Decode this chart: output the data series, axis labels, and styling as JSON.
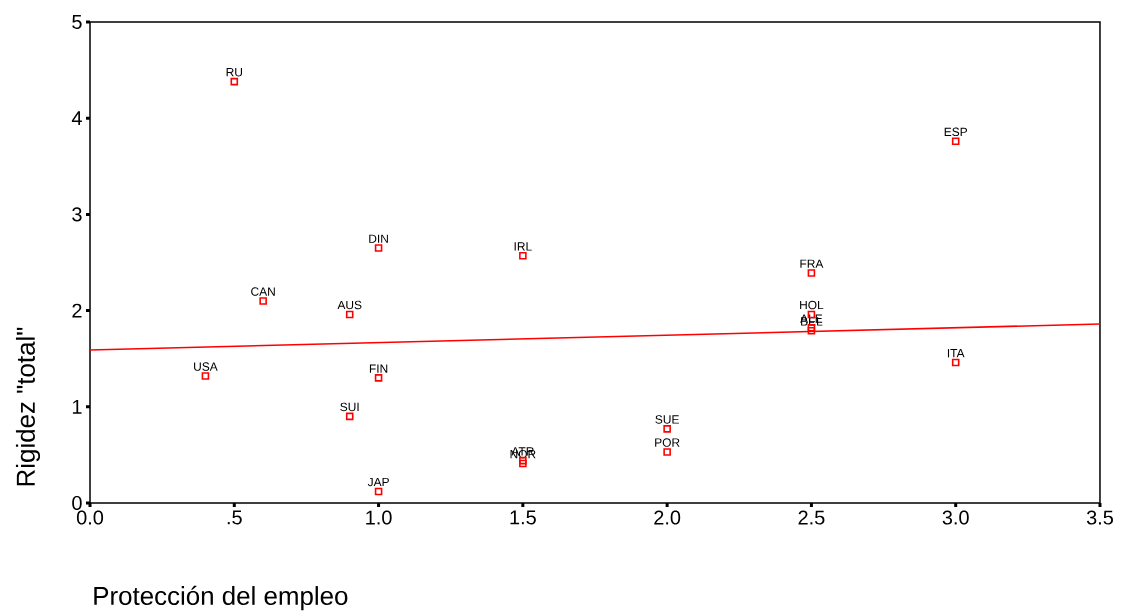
{
  "chart_data": {
    "type": "scatter",
    "xlabel": "Protección del empleo",
    "ylabel": "Rigidez \"total\"",
    "series": [
      {
        "color": "#ff0000",
        "marker": "square",
        "x": [
          0.5,
          3.0,
          1.0,
          1.5,
          2.5,
          0.6,
          0.9,
          2.5,
          2.5,
          2.5,
          0.4,
          1.0,
          3.0,
          0.9,
          2.0,
          2.0,
          1.5,
          1.5,
          1.0
        ],
        "values": [
          4.38,
          3.76,
          2.65,
          2.57,
          2.39,
          2.1,
          1.96,
          1.96,
          1.82,
          1.79,
          1.32,
          1.3,
          1.46,
          0.9,
          0.77,
          0.53,
          0.44,
          0.41,
          0.12
        ]
      },
      {
        "type": "line",
        "marker": "none",
        "color": "#ff0000",
        "x": [
          0,
          3.5
        ],
        "values": [
          1.59,
          1.86
        ]
      }
    ],
    "annotations": [
      {
        "text": "RU",
        "x": 0.5,
        "y": 4.38
      },
      {
        "text": "ESP",
        "x": 3.0,
        "y": 3.76
      },
      {
        "text": "DIN",
        "x": 1.0,
        "y": 2.65
      },
      {
        "text": "IRL",
        "x": 1.5,
        "y": 2.57
      },
      {
        "text": "FRA",
        "x": 2.5,
        "y": 2.39
      },
      {
        "text": "CAN",
        "x": 0.6,
        "y": 2.1
      },
      {
        "text": "AUS",
        "x": 0.9,
        "y": 1.96
      },
      {
        "text": "HOL",
        "x": 2.5,
        "y": 1.96
      },
      {
        "text": "ALE",
        "x": 2.5,
        "y": 1.82
      },
      {
        "text": "BEL",
        "x": 2.5,
        "y": 1.79
      },
      {
        "text": "USA",
        "x": 0.4,
        "y": 1.32
      },
      {
        "text": "FIN",
        "x": 1.0,
        "y": 1.3
      },
      {
        "text": "ITA",
        "x": 3.0,
        "y": 1.46
      },
      {
        "text": "SUI",
        "x": 0.9,
        "y": 0.9
      },
      {
        "text": "SUE",
        "x": 2.0,
        "y": 0.77
      },
      {
        "text": "POR",
        "x": 2.0,
        "y": 0.53
      },
      {
        "text": "ATR",
        "x": 1.5,
        "y": 0.44
      },
      {
        "text": "NOR",
        "x": 1.5,
        "y": 0.41
      },
      {
        "text": "JAP",
        "x": 1.0,
        "y": 0.12
      }
    ],
    "xlim": [
      0,
      3.5
    ],
    "xticks": [
      {
        "value": 0,
        "label": "0.0"
      },
      {
        "value": 0.5,
        "label": ".5"
      },
      {
        "value": 1.0,
        "label": "1.0"
      },
      {
        "value": 1.5,
        "label": "1.5"
      },
      {
        "value": 2.0,
        "label": "2.0"
      },
      {
        "value": 2.5,
        "label": "2.5"
      },
      {
        "value": 3.0,
        "label": "3.0"
      },
      {
        "value": 3.5,
        "label": "3.5"
      }
    ],
    "ylim": [
      0,
      5
    ],
    "yticks": [
      0,
      1,
      2,
      3,
      4,
      5
    ],
    "grid": false
  }
}
